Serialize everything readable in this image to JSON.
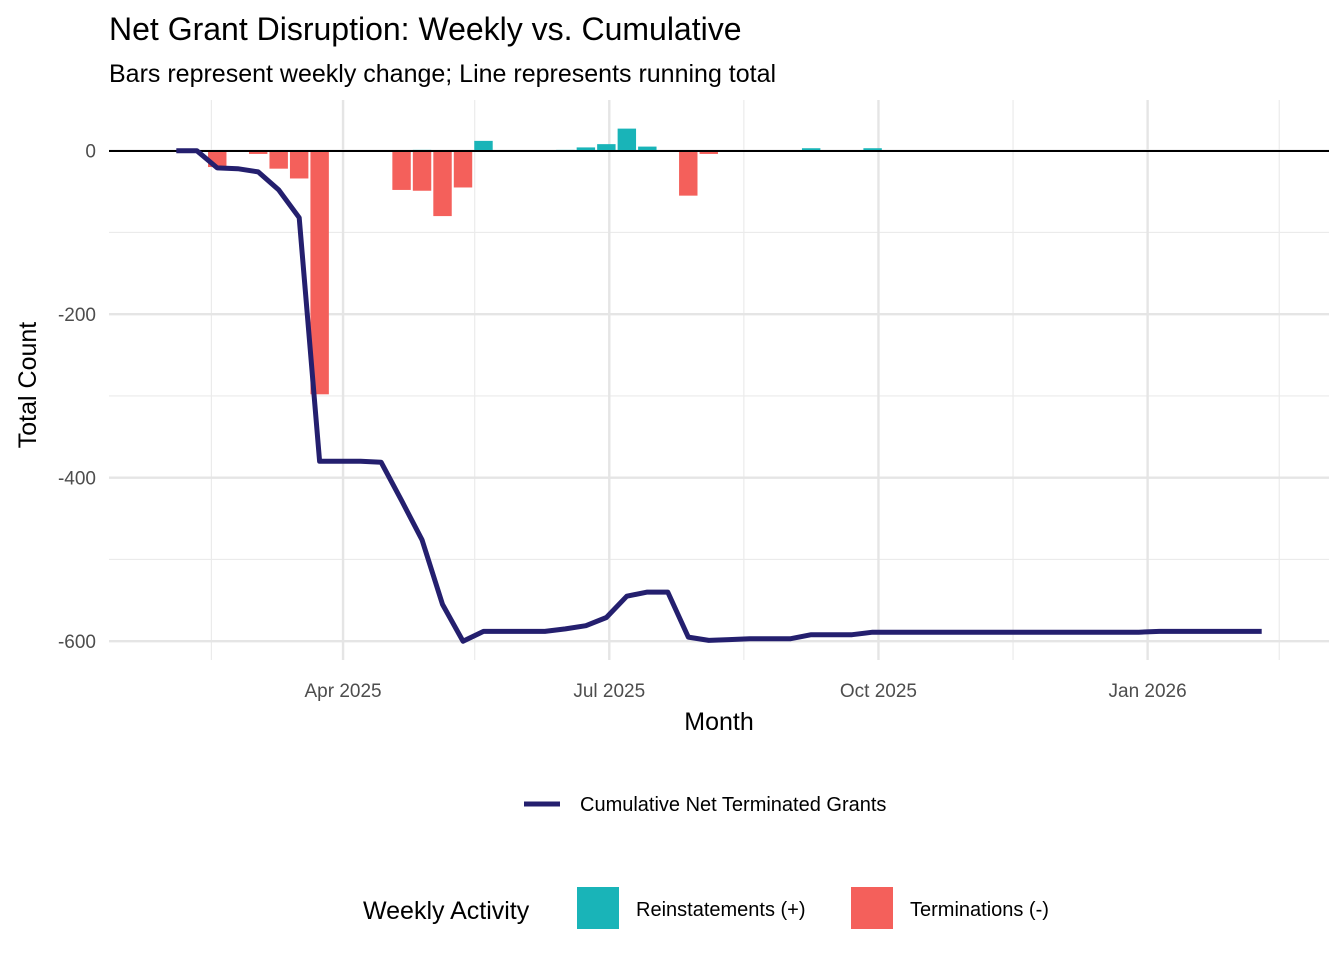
{
  "chart_data": {
    "type": "bar+line",
    "title": "Net Grant Disruption: Weekly vs. Cumulative",
    "subtitle": "Bars represent weekly change; Line represents running total",
    "xlabel": "Month",
    "ylabel": "Total Count",
    "xlim": [
      "2025-01-11",
      "2026-03-04"
    ],
    "ylim": [
      -623,
      62
    ],
    "grid": true,
    "x_ticks": [
      {
        "date": "2025-04-01",
        "label": "Apr 2025"
      },
      {
        "date": "2025-07-01",
        "label": "Jul 2025"
      },
      {
        "date": "2025-10-01",
        "label": "Oct 2025"
      },
      {
        "date": "2026-01-01",
        "label": "Jan 2026"
      }
    ],
    "x_minor_ticks": [
      "2025-02-15",
      "2025-05-16",
      "2025-08-16",
      "2025-11-16",
      "2026-02-15"
    ],
    "y_ticks": [
      0,
      -200,
      -400,
      -600
    ],
    "y_tick_labels": [
      "0",
      "-200",
      "-400",
      "-600"
    ],
    "y_minor_ticks": [
      -100,
      -300,
      -500
    ],
    "colors": {
      "reinstatements": "#19B4B8",
      "terminations": "#F4605B",
      "line": "#241F6E"
    },
    "bars": [
      {
        "date": "2025-02-17",
        "value": -20,
        "type": "terminations"
      },
      {
        "date": "2025-03-03",
        "value": -4,
        "type": "terminations"
      },
      {
        "date": "2025-03-10",
        "value": -22,
        "type": "terminations"
      },
      {
        "date": "2025-03-17",
        "value": -34,
        "type": "terminations"
      },
      {
        "date": "2025-03-24",
        "value": -298,
        "type": "terminations"
      },
      {
        "date": "2025-04-21",
        "value": -48,
        "type": "terminations"
      },
      {
        "date": "2025-04-28",
        "value": -49,
        "type": "terminations"
      },
      {
        "date": "2025-04-28",
        "value": 1,
        "type": "reinstatements"
      },
      {
        "date": "2025-05-05",
        "value": -80,
        "type": "terminations"
      },
      {
        "date": "2025-05-12",
        "value": -45,
        "type": "terminations"
      },
      {
        "date": "2025-05-19",
        "value": 12,
        "type": "reinstatements"
      },
      {
        "date": "2025-06-02",
        "value": -1,
        "type": "terminations"
      },
      {
        "date": "2025-06-16",
        "value": 1,
        "type": "reinstatements"
      },
      {
        "date": "2025-06-23",
        "value": 4,
        "type": "reinstatements"
      },
      {
        "date": "2025-06-30",
        "value": 8,
        "type": "reinstatements"
      },
      {
        "date": "2025-07-07",
        "value": 27,
        "type": "reinstatements"
      },
      {
        "date": "2025-07-14",
        "value": 5,
        "type": "reinstatements"
      },
      {
        "date": "2025-07-28",
        "value": -55,
        "type": "terminations"
      },
      {
        "date": "2025-08-04",
        "value": -4,
        "type": "terminations"
      },
      {
        "date": "2025-09-08",
        "value": 3,
        "type": "reinstatements"
      },
      {
        "date": "2025-09-29",
        "value": 3,
        "type": "reinstatements"
      }
    ],
    "line": {
      "name": "Cumulative Net Terminated Grants",
      "start_date": "2025-02-03",
      "step_days": 7,
      "values": [
        0,
        0,
        -21,
        -22,
        -26,
        -48,
        -82,
        -380,
        -380,
        -380,
        -381,
        -428,
        -476,
        -555,
        -600,
        -588,
        -588,
        -588,
        -588,
        -585,
        -581,
        -571,
        -545,
        -540,
        -540,
        -595,
        -599,
        -598,
        -597,
        -597,
        -597,
        -592,
        -592,
        -592,
        -589,
        -589,
        -589,
        -589,
        -589,
        -589,
        -589,
        -589,
        -589,
        -589,
        -589,
        -589,
        -589,
        -589,
        -588,
        -588,
        -588,
        -588,
        -588,
        -588
      ]
    },
    "legend": {
      "position": "bottom",
      "line_label": "Cumulative Net Terminated Grants",
      "fill_title": "Weekly Activity",
      "fill_items": [
        {
          "key": "reinstatements",
          "label": "Reinstatements (+)"
        },
        {
          "key": "terminations",
          "label": "Terminations (-)"
        }
      ]
    }
  }
}
